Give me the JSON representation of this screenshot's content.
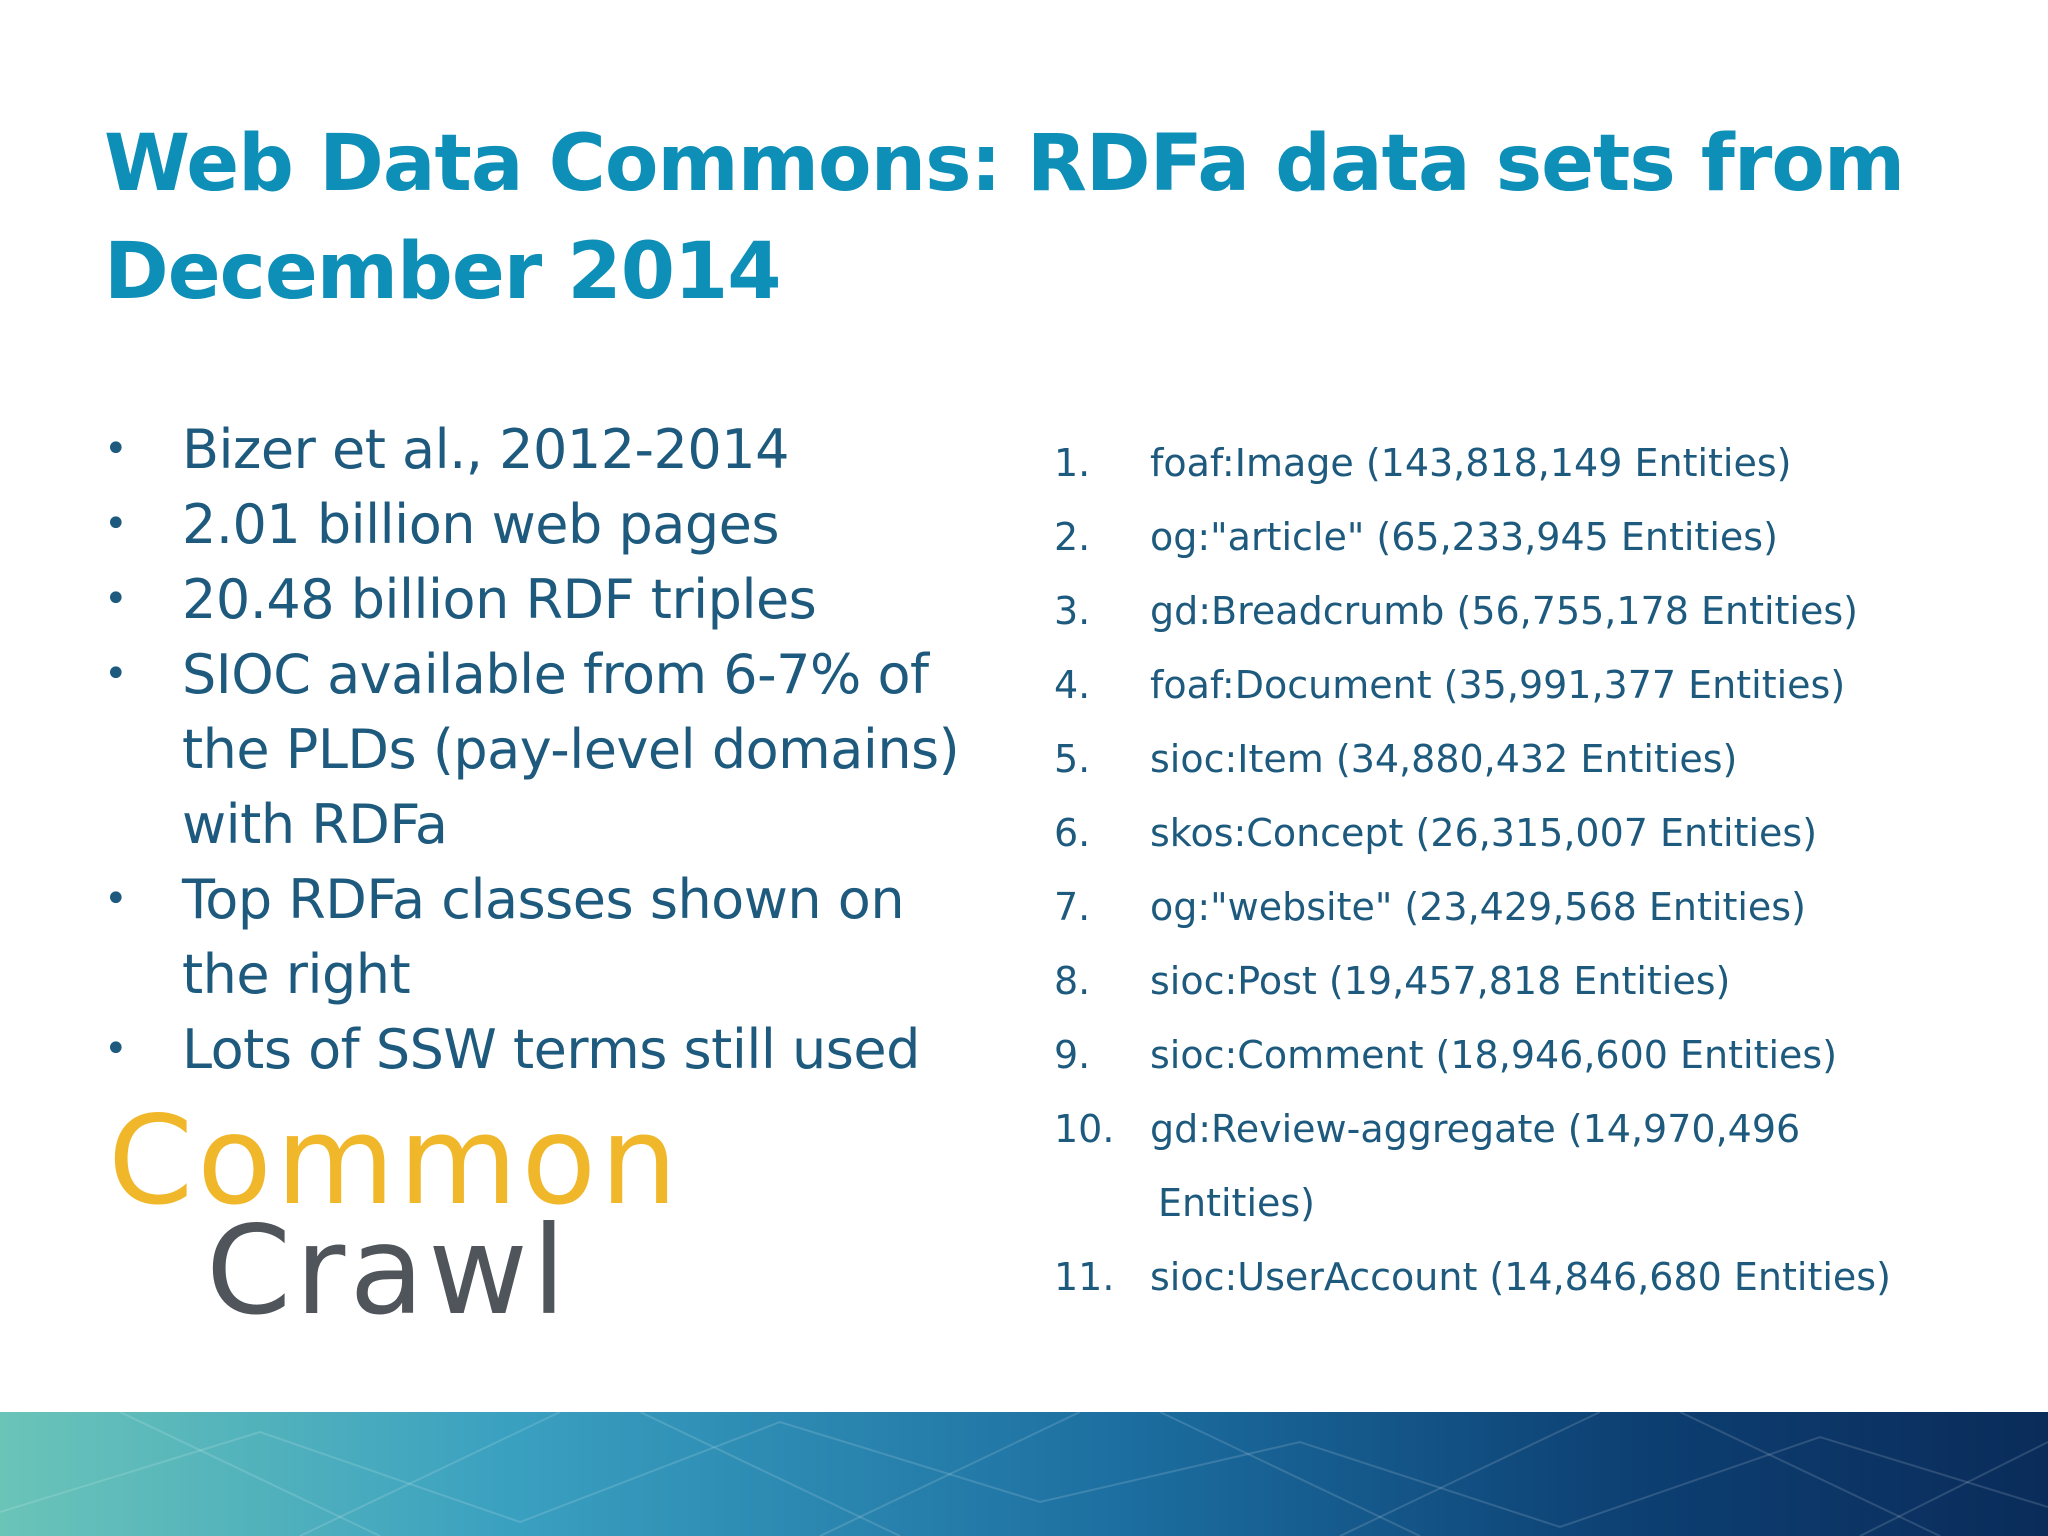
{
  "title": "Web Data Commons: RDFa data sets from December 2014",
  "bullets": [
    {
      "text": "Bizer et al., 2012-2014"
    },
    {
      "text": "2.01 billion web pages"
    },
    {
      "text": "20.48 billion RDF triples"
    },
    {
      "text": "SIOC available from 6-7% of the PLDs (pay-level domains) with RDFa"
    },
    {
      "text": "Top RDFa classes shown on the right"
    },
    {
      "text": "Lots of SSW terms still used"
    }
  ],
  "bullet_glyph": "•",
  "logo": {
    "line1": "Common",
    "line2": "Crawl",
    "colors": {
      "line1": "#f0b72a",
      "line2": "#4f555a"
    }
  },
  "classes": [
    {
      "num": "1.",
      "text": "foaf:Image (143,818,149 Entities)"
    },
    {
      "num": "2.",
      "text": "og:\"article\" (65,233,945 Entities)"
    },
    {
      "num": "3.",
      "text": "gd:Breadcrumb (56,755,178 Entities)"
    },
    {
      "num": "4.",
      "text": "foaf:Document (35,991,377 Entities)"
    },
    {
      "num": "5.",
      "text": "sioc:Item (34,880,432 Entities)"
    },
    {
      "num": "6.",
      "text": "skos:Concept (26,315,007 Entities)"
    },
    {
      "num": "7.",
      "text": "og:\"website\" (23,429,568 Entities)"
    },
    {
      "num": "8.",
      "text": "sioc:Post (19,457,818 Entities)"
    },
    {
      "num": "9.",
      "text": "sioc:Comment (18,946,600 Entities)"
    },
    {
      "num": "10.",
      "text": "gd:Review-aggregate (14,970,496",
      "continuation": "Entities)"
    },
    {
      "num": "11.",
      "text": "sioc:UserAccount (14,846,680 Entities)"
    }
  ],
  "colors": {
    "title": "#0e8fb8",
    "body_text": "#1d5a7e",
    "footer_start": "#6ac4b8",
    "footer_end": "#0a2c5a"
  }
}
